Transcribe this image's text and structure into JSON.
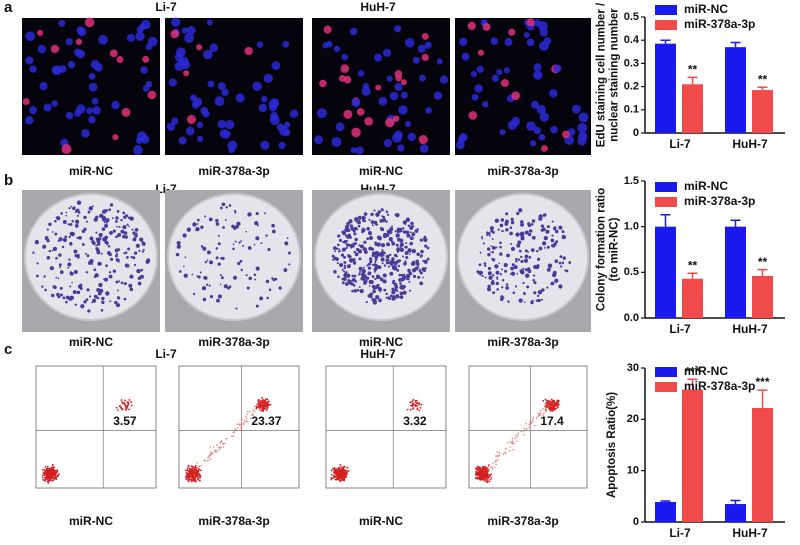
{
  "panels": [
    {
      "label": "a",
      "groups": [
        "Li-7",
        "HuH-7"
      ],
      "captions": [
        "miR-NC",
        "miR-378a-3p",
        "miR-NC",
        "miR-378a-3p"
      ]
    },
    {
      "label": "b",
      "groups": [
        "Li-7",
        "HuH-7"
      ],
      "captions": [
        "miR-NC",
        "miR-378a-3p",
        "miR-NC",
        "miR-378a-3p"
      ]
    },
    {
      "label": "c",
      "groups": [
        "Li-7",
        "HuH-7"
      ],
      "captions": [
        "miR-NC",
        "miR-378a-3p",
        "miR-NC",
        "miR-378a-3p"
      ],
      "quadrant_values": [
        3.57,
        23.37,
        3.32,
        17.4
      ]
    }
  ],
  "chart_data": [
    {
      "type": "bar",
      "ylabel": [
        "EdU staining cell number /",
        "nuclear staining number"
      ],
      "categories": [
        "Li-7",
        "HuH-7"
      ],
      "ylim": [
        0,
        0.5
      ],
      "yticks": [
        0,
        0.1,
        0.2,
        0.3,
        0.4,
        0.5
      ],
      "series": [
        {
          "name": "miR-NC",
          "color": "#1a1aee",
          "values": [
            0.385,
            0.37
          ],
          "errors": [
            0.015,
            0.02
          ]
        },
        {
          "name": "miR-378a-3p",
          "color": "#f04a4a",
          "values": [
            0.21,
            0.185
          ],
          "errors": [
            0.03,
            0.012
          ],
          "significance": [
            "**",
            "**"
          ]
        }
      ]
    },
    {
      "type": "bar",
      "ylabel": [
        "Colony formation ratio",
        "(to miR-NC)"
      ],
      "categories": [
        "Li-7",
        "HuH-7"
      ],
      "ylim": [
        0,
        1.5
      ],
      "yticks": [
        {
          "value": 0,
          "label": "0.0"
        },
        0.5,
        {
          "value": 1,
          "label": "1.0"
        },
        1.5
      ],
      "series": [
        {
          "name": "miR-NC",
          "color": "#1a1aee",
          "values": [
            1.0,
            1.0
          ],
          "errors": [
            0.13,
            0.07
          ]
        },
        {
          "name": "miR-378a-3p",
          "color": "#f04a4a",
          "values": [
            0.43,
            0.46
          ],
          "errors": [
            0.06,
            0.07
          ],
          "significance": [
            "**",
            "**"
          ]
        }
      ]
    },
    {
      "type": "bar",
      "ylabel": [
        "Apoptosis Ratio(%)"
      ],
      "categories": [
        "Li-7",
        "HuH-7"
      ],
      "ylim": [
        0,
        30
      ],
      "yticks": [
        0,
        10,
        20,
        30
      ],
      "series": [
        {
          "name": "miR-NC",
          "color": "#1a1aee",
          "values": [
            3.9,
            3.5
          ],
          "errors": [
            0.2,
            0.7
          ]
        },
        {
          "name": "miR-378a-3p",
          "color": "#f04a4a",
          "values": [
            25.8,
            22.2
          ],
          "errors": [
            2.0,
            3.5
          ],
          "significance": [
            "***",
            "***"
          ]
        }
      ]
    }
  ]
}
